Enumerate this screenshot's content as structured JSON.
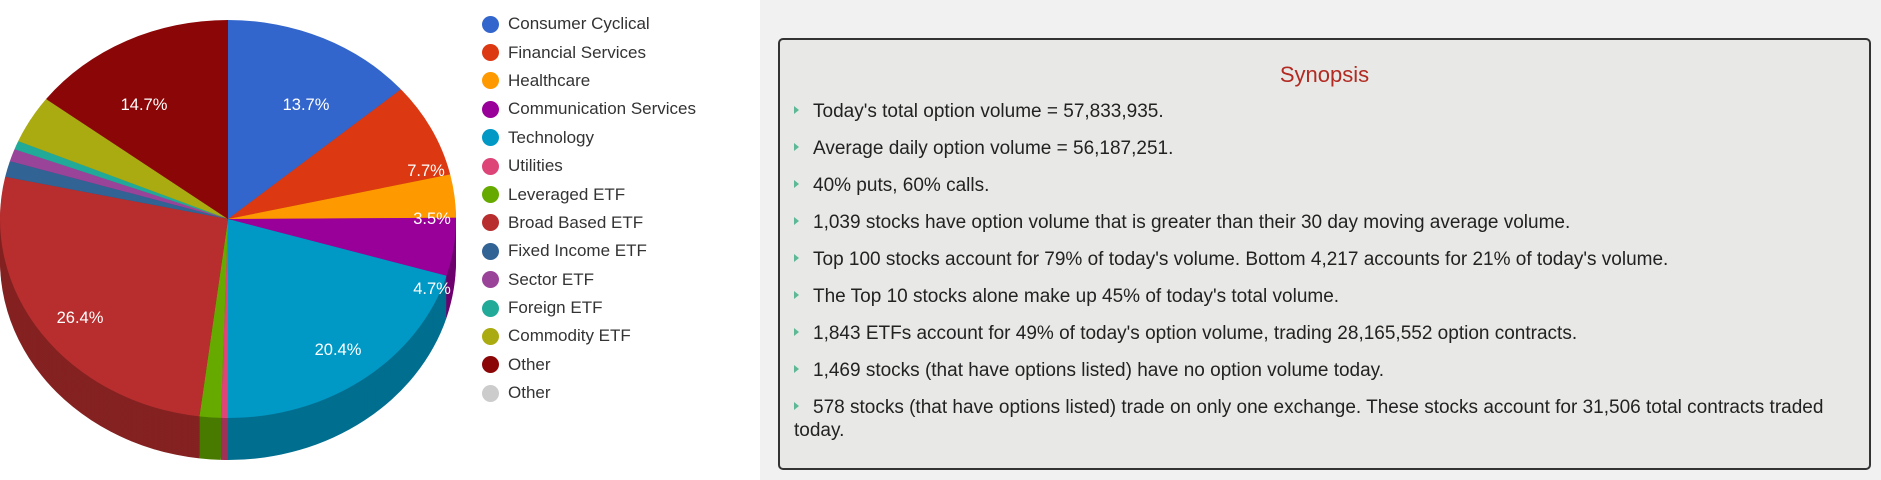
{
  "chart_data": {
    "type": "pie",
    "style": "3d",
    "legend_position": "right",
    "categories": [
      "Consumer Cyclical",
      "Financial Services",
      "Healthcare",
      "Communication Services",
      "Technology",
      "Utilities",
      "Leveraged ETF",
      "Broad Based ETF",
      "Fixed Income ETF",
      "Sector ETF",
      "Foreign ETF",
      "Commodity ETF",
      "Other",
      "Other"
    ],
    "values": [
      13.7,
      7.7,
      3.5,
      4.7,
      20.4,
      0.5,
      1.5,
      26.4,
      1.3,
      1.0,
      0.7,
      3.9,
      14.7,
      0
    ],
    "colors": [
      "#3366cc",
      "#dc3912",
      "#ff9900",
      "#990099",
      "#0099c6",
      "#dd4477",
      "#66aa00",
      "#b82e2e",
      "#316395",
      "#994499",
      "#22aa99",
      "#aaaa11",
      "#8b0707",
      "#cccccc"
    ],
    "data_labels": [
      "13.7%",
      "7.7%",
      "3.5%",
      "4.7%",
      "20.4%",
      "",
      "",
      "26.4%",
      "",
      "",
      "",
      "",
      "14.7%",
      ""
    ]
  },
  "synopsis": {
    "title": "Synopsis",
    "items": [
      "Today's total option volume = 57,833,935.",
      "Average daily option volume = 56,187,251.",
      "40% puts, 60% calls.",
      "1,039 stocks have option volume that is greater than their 30 day moving average volume.",
      "Top 100 stocks account for 79% of today's volume. Bottom 4,217 accounts for 21% of today's volume.",
      "The Top 10 stocks alone make up 45% of today's total volume.",
      "1,843 ETFs account for 49% of today's option volume, trading 28,165,552 option contracts.",
      "1,469 stocks (that have options listed) have no option volume today.",
      "578 stocks (that have options listed) trade on only one exchange. These stocks account for 31,506 total contracts traded today."
    ]
  }
}
